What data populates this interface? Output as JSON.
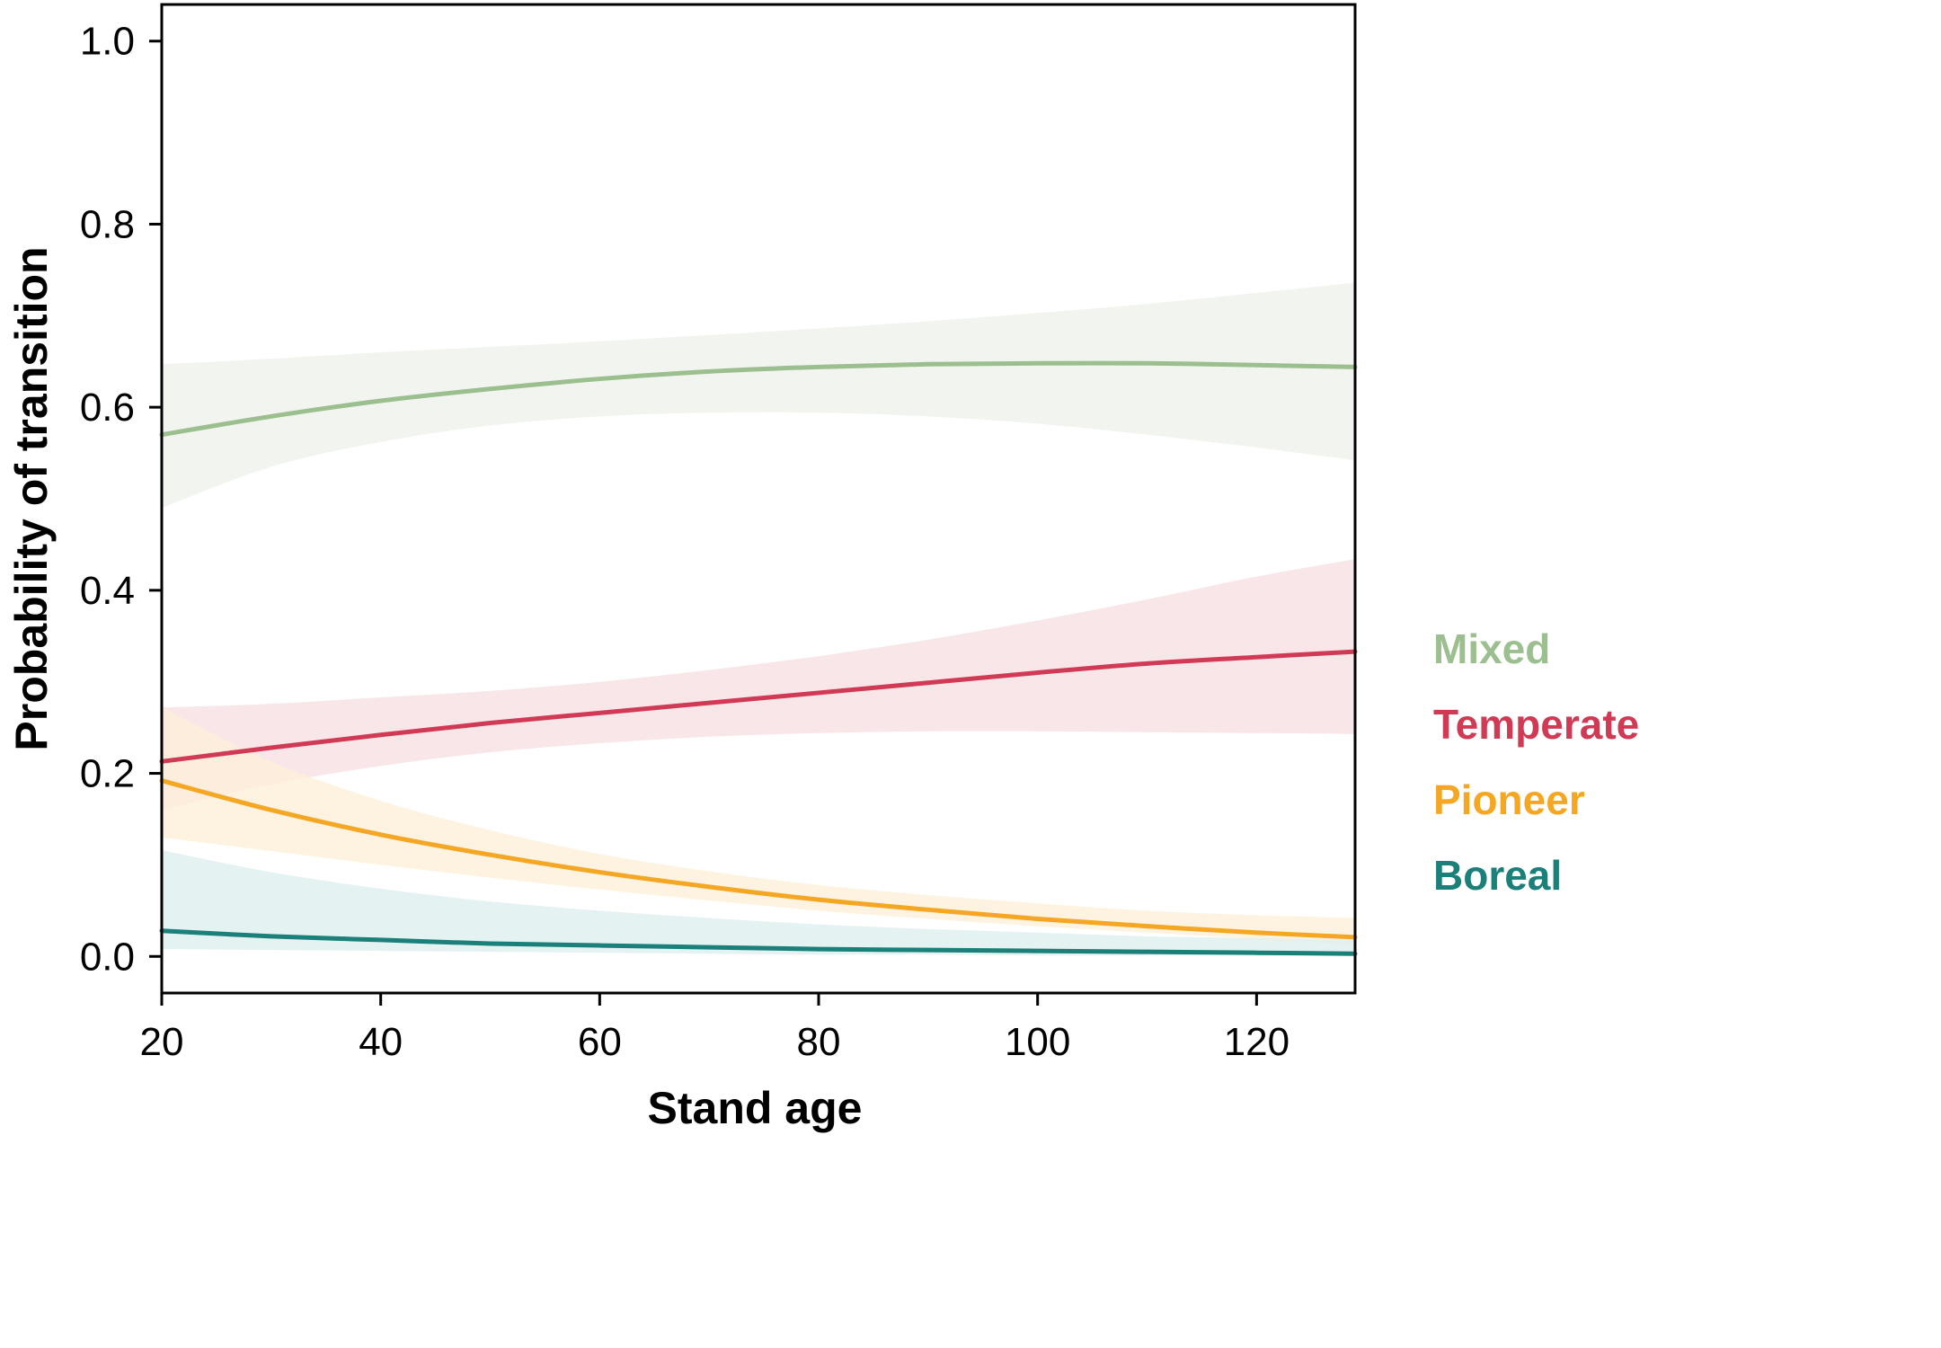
{
  "chart_data": {
    "type": "line",
    "xlabel": "Stand age",
    "ylabel": "Probability of transition",
    "xlim": [
      20,
      129
    ],
    "ylim": [
      -0.04,
      1.04
    ],
    "x_ticks": [
      20,
      40,
      60,
      80,
      100,
      120
    ],
    "x_tick_labels": [
      "20",
      "40",
      "60",
      "80",
      "100",
      "120"
    ],
    "y_ticks": [
      0.0,
      0.2,
      0.4,
      0.6,
      0.8,
      1.0
    ],
    "y_tick_labels": [
      "0.0",
      "0.2",
      "0.4",
      "0.6",
      "0.8",
      "1.0"
    ],
    "grid": false,
    "legend_position": "right",
    "x": [
      20,
      30,
      40,
      50,
      60,
      70,
      80,
      90,
      100,
      110,
      120,
      129
    ],
    "series": [
      {
        "name": "Mixed",
        "color": "#9bbf8e",
        "band_color": "#eef2ea",
        "values": [
          0.57,
          0.59,
          0.607,
          0.62,
          0.631,
          0.639,
          0.644,
          0.647,
          0.648,
          0.648,
          0.646,
          0.644
        ],
        "lower": [
          0.49,
          0.535,
          0.562,
          0.58,
          0.59,
          0.594,
          0.594,
          0.59,
          0.582,
          0.57,
          0.556,
          0.542
        ],
        "upper": [
          0.647,
          0.653,
          0.66,
          0.666,
          0.672,
          0.679,
          0.686,
          0.694,
          0.703,
          0.713,
          0.725,
          0.736
        ]
      },
      {
        "name": "Temperate",
        "color": "#d13a55",
        "band_color": "#f7dde2",
        "values": [
          0.213,
          0.228,
          0.242,
          0.255,
          0.266,
          0.277,
          0.288,
          0.299,
          0.31,
          0.32,
          0.327,
          0.333
        ],
        "lower": [
          0.16,
          0.188,
          0.208,
          0.223,
          0.233,
          0.24,
          0.244,
          0.246,
          0.246,
          0.245,
          0.244,
          0.243
        ],
        "upper": [
          0.272,
          0.276,
          0.283,
          0.29,
          0.3,
          0.313,
          0.328,
          0.346,
          0.367,
          0.39,
          0.415,
          0.434
        ]
      },
      {
        "name": "Pioneer",
        "color": "#f5a623",
        "band_color": "#fdefd7",
        "values": [
          0.192,
          0.16,
          0.133,
          0.111,
          0.092,
          0.076,
          0.062,
          0.051,
          0.041,
          0.033,
          0.026,
          0.021
        ],
        "lower": [
          0.13,
          0.115,
          0.1,
          0.086,
          0.073,
          0.061,
          0.05,
          0.041,
          0.033,
          0.026,
          0.019,
          0.012
        ],
        "upper": [
          0.272,
          0.213,
          0.17,
          0.138,
          0.112,
          0.093,
          0.078,
          0.067,
          0.058,
          0.05,
          0.045,
          0.042
        ]
      },
      {
        "name": "Boreal",
        "color": "#1b7f7a",
        "band_color": "#dceeee",
        "values": [
          0.028,
          0.022,
          0.018,
          0.014,
          0.012,
          0.01,
          0.008,
          0.007,
          0.006,
          0.005,
          0.004,
          0.003
        ],
        "lower": [
          0.008,
          0.007,
          0.006,
          0.005,
          0.004,
          0.003,
          0.002,
          0.002,
          0.001,
          0.001,
          0.001,
          0.001
        ],
        "upper": [
          0.116,
          0.092,
          0.074,
          0.06,
          0.05,
          0.042,
          0.035,
          0.03,
          0.026,
          0.022,
          0.02,
          0.018
        ]
      }
    ]
  }
}
